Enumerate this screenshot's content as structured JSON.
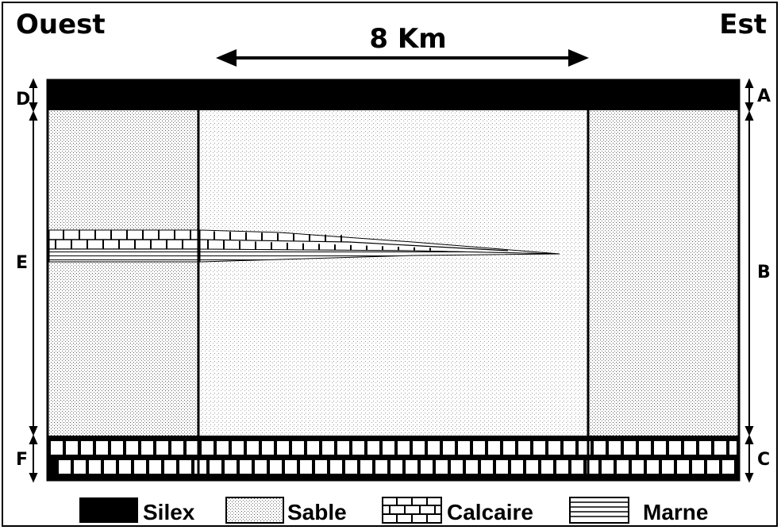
{
  "header": {
    "west": "Ouest",
    "east": "Est",
    "distance": "8 Km"
  },
  "side_labels": {
    "left": [
      "D",
      "E",
      "F"
    ],
    "right": [
      "A",
      "B",
      "C"
    ]
  },
  "legend": [
    {
      "name": "Silex",
      "pattern": "silex"
    },
    {
      "name": "Sable",
      "pattern": "sable"
    },
    {
      "name": "Calcaire",
      "pattern": "calcaire"
    },
    {
      "name": "Marne",
      "pattern": "marne"
    }
  ],
  "colors": {
    "ink": "#000000",
    "paper": "#ffffff"
  }
}
